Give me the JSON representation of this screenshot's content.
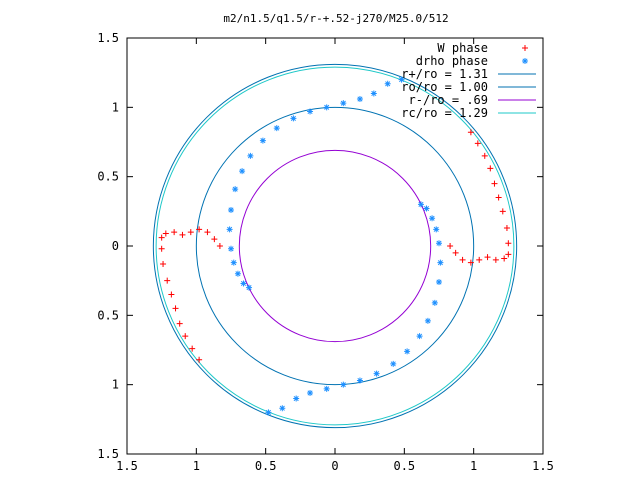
{
  "chart_data": {
    "type": "scatter",
    "title": "m2/n1.5/q1.5/r-+.52-j270/M25.0/512",
    "xlabel": "",
    "ylabel": "",
    "xlim": [
      -1.5,
      1.5
    ],
    "ylim": [
      -1.5,
      1.5
    ],
    "x_ticks": [
      -1.5,
      -1,
      -0.5,
      0,
      0.5,
      1,
      1.5
    ],
    "x_tick_labels": [
      "1.5",
      "1",
      "0.5",
      "0",
      "0.5",
      "1",
      "1.5"
    ],
    "y_ticks": [
      1.5,
      1,
      0.5,
      0,
      -0.5,
      -1,
      -1.5
    ],
    "y_tick_labels": [
      "1.5",
      "1",
      "0.5",
      "0",
      "0.5",
      "1",
      "1.5"
    ],
    "grid": false,
    "legend_position": "top-right",
    "series": [
      {
        "name": "W phase",
        "kind": "points",
        "marker": "+",
        "color": "#ff0000",
        "points": [
          [
            -0.98,
            -0.82
          ],
          [
            -1.03,
            -0.74
          ],
          [
            -1.08,
            -0.65
          ],
          [
            -1.12,
            -0.56
          ],
          [
            -1.15,
            -0.45
          ],
          [
            -1.18,
            -0.35
          ],
          [
            -1.21,
            -0.25
          ],
          [
            -1.24,
            -0.13
          ],
          [
            -1.25,
            -0.02
          ],
          [
            -1.25,
            0.06
          ],
          [
            -1.22,
            0.09
          ],
          [
            -1.16,
            0.1
          ],
          [
            -1.1,
            0.08
          ],
          [
            -1.04,
            0.1
          ],
          [
            -0.98,
            0.12
          ],
          [
            -0.92,
            0.1
          ],
          [
            -0.87,
            0.05
          ],
          [
            -0.83,
            0.0
          ],
          [
            0.83,
            0.0
          ],
          [
            0.87,
            -0.05
          ],
          [
            0.92,
            -0.1
          ],
          [
            0.98,
            -0.12
          ],
          [
            1.04,
            -0.1
          ],
          [
            1.1,
            -0.08
          ],
          [
            1.16,
            -0.1
          ],
          [
            1.22,
            -0.09
          ],
          [
            1.25,
            -0.06
          ],
          [
            1.25,
            0.02
          ],
          [
            1.24,
            0.13
          ],
          [
            1.21,
            0.25
          ],
          [
            1.18,
            0.35
          ],
          [
            1.15,
            0.45
          ],
          [
            1.12,
            0.56
          ],
          [
            1.08,
            0.65
          ],
          [
            1.03,
            0.74
          ],
          [
            0.98,
            0.82
          ]
        ]
      },
      {
        "name": "drho phase",
        "kind": "points",
        "marker": "*",
        "color": "#1e90ff",
        "points": [
          [
            0.48,
            1.2
          ],
          [
            0.38,
            1.17
          ],
          [
            0.28,
            1.1
          ],
          [
            0.18,
            1.06
          ],
          [
            0.06,
            1.03
          ],
          [
            -0.06,
            1.0
          ],
          [
            -0.18,
            0.97
          ],
          [
            -0.3,
            0.92
          ],
          [
            -0.42,
            0.85
          ],
          [
            -0.52,
            0.76
          ],
          [
            -0.61,
            0.65
          ],
          [
            -0.67,
            0.54
          ],
          [
            -0.72,
            0.41
          ],
          [
            -0.75,
            0.26
          ],
          [
            -0.76,
            0.12
          ],
          [
            -0.75,
            -0.02
          ],
          [
            -0.73,
            -0.12
          ],
          [
            -0.7,
            -0.2
          ],
          [
            -0.66,
            -0.27
          ],
          [
            -0.62,
            -0.3
          ],
          [
            0.62,
            0.3
          ],
          [
            0.66,
            0.27
          ],
          [
            0.7,
            0.2
          ],
          [
            0.73,
            0.12
          ],
          [
            0.75,
            0.02
          ],
          [
            0.76,
            -0.12
          ],
          [
            0.75,
            -0.26
          ],
          [
            0.72,
            -0.41
          ],
          [
            0.67,
            -0.54
          ],
          [
            0.61,
            -0.65
          ],
          [
            0.52,
            -0.76
          ],
          [
            0.42,
            -0.85
          ],
          [
            0.3,
            -0.92
          ],
          [
            0.18,
            -0.97
          ],
          [
            0.06,
            -1.0
          ],
          [
            -0.06,
            -1.03
          ],
          [
            -0.18,
            -1.06
          ],
          [
            -0.28,
            -1.1
          ],
          [
            -0.38,
            -1.17
          ],
          [
            -0.48,
            -1.2
          ]
        ]
      },
      {
        "name": "r+/ro = 1.31",
        "kind": "circle",
        "radius": 1.31,
        "color": "#0072b2"
      },
      {
        "name": "ro/ro = 1.00",
        "kind": "circle",
        "radius": 1.0,
        "color": "#0072b2"
      },
      {
        "name": "r-/ro =  .69",
        "kind": "circle",
        "radius": 0.69,
        "color": "#9400d3"
      },
      {
        "name": "rc/ro = 1.29",
        "kind": "circle",
        "radius": 1.29,
        "color": "#1ec8c8"
      }
    ]
  }
}
